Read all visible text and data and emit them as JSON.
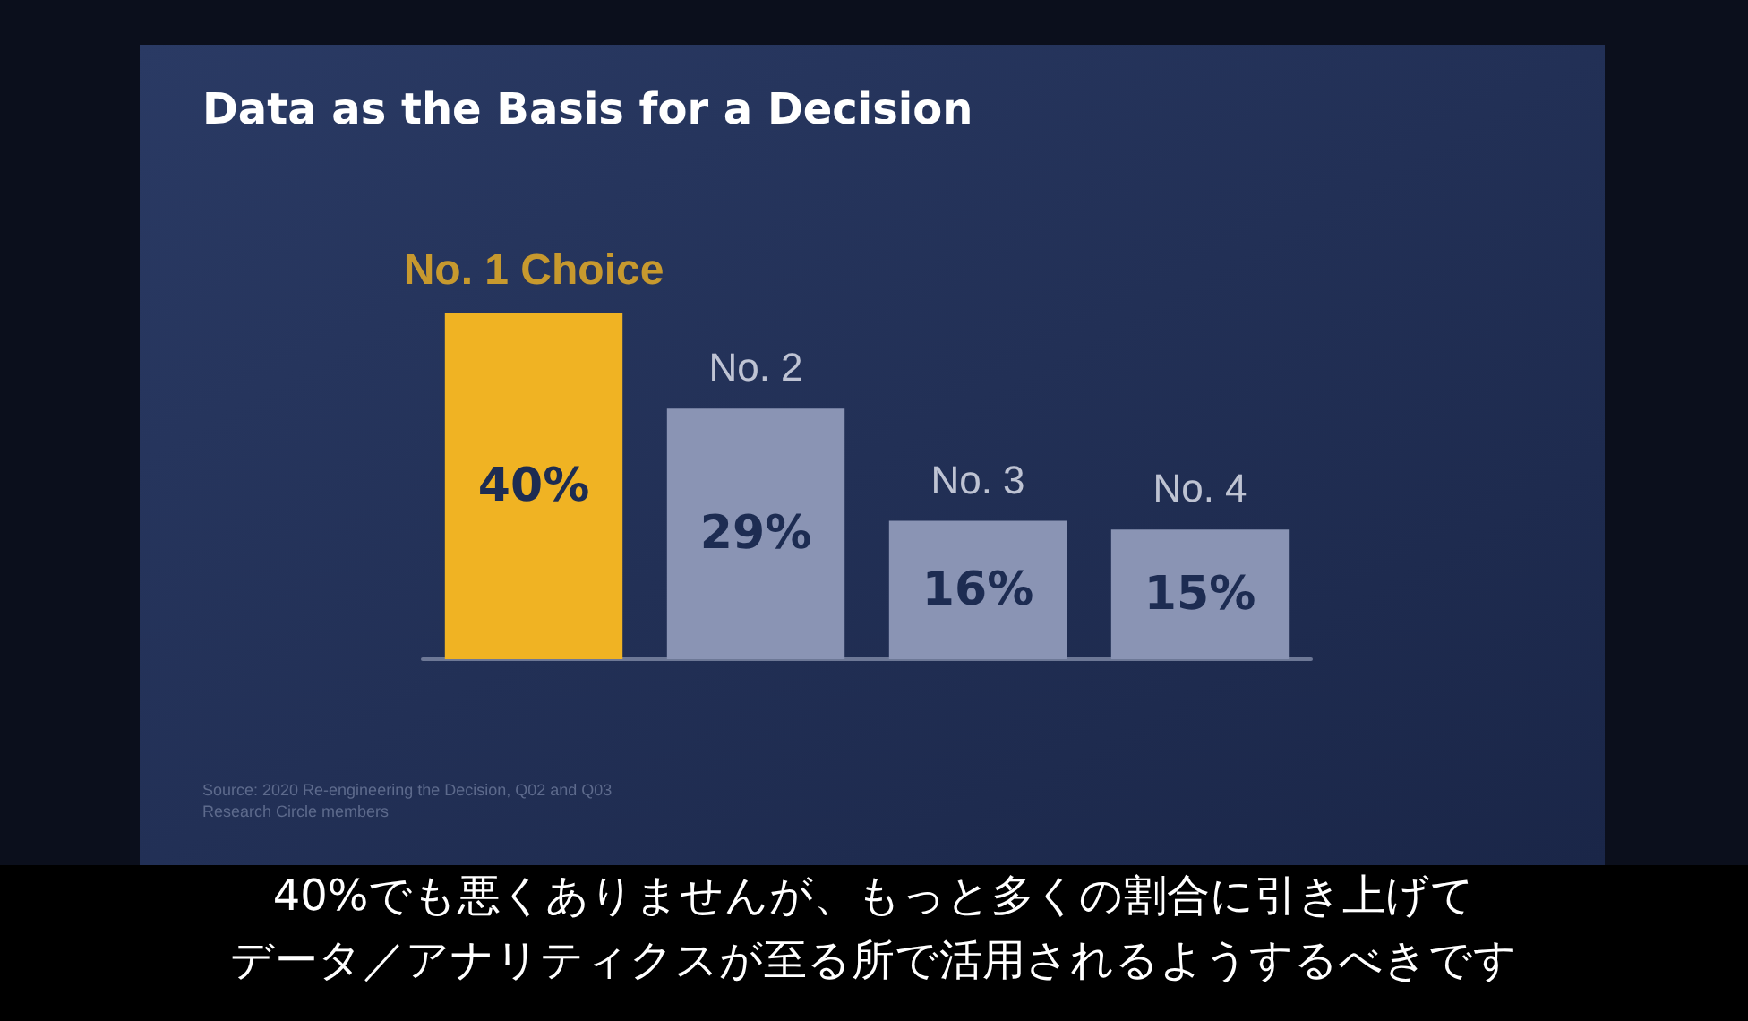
{
  "chart_data": {
    "type": "bar",
    "title": "Data as the Basis for a Decision",
    "categories": [
      "No. 1 Choice",
      "No. 2",
      "No. 3",
      "No. 4"
    ],
    "values": [
      40,
      29,
      16,
      15
    ],
    "colors": [
      "#f0b323",
      "#8a94b4",
      "#8a94b4",
      "#8a94b4"
    ],
    "value_labels": [
      "40%",
      "29%",
      "16%",
      "15%"
    ],
    "annotations": [
      "Source: 2020 Re-engineering the Decision, Q02 and Q03\nResearch Circle members",
      "40%でも悪くありませんが、もっと多くの割合に引き上げて",
      "データ／アナリティクスが至る所で活用されるようするべきです"
    ]
  }
}
